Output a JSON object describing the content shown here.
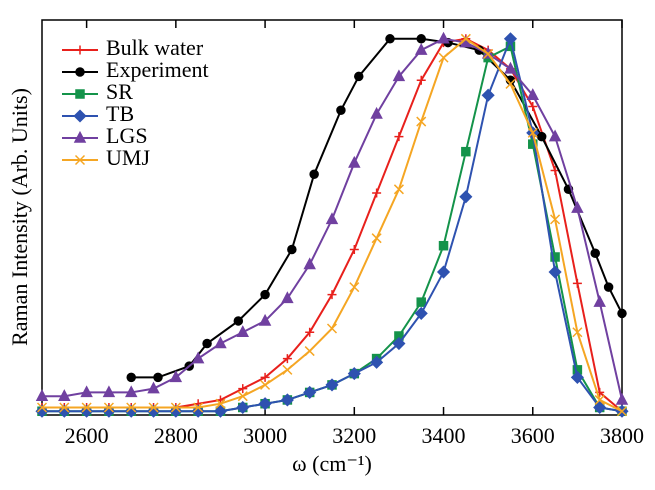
{
  "chart_data": {
    "type": "line",
    "xlabel": "ω (cm⁻¹)",
    "ylabel": "Raman Intensity (Arb. Units)",
    "xlim": [
      2500,
      3800
    ],
    "ylim": [
      0,
      1.05
    ],
    "xticks": [
      2600,
      2800,
      3000,
      3200,
      3400,
      3600,
      3800
    ],
    "legend": "upper left",
    "series": [
      {
        "name": "Bulk water",
        "color": "#e8201c",
        "marker": "plus",
        "x": [
          2500,
          2550,
          2600,
          2650,
          2700,
          2750,
          2800,
          2850,
          2900,
          2950,
          3000,
          3050,
          3100,
          3150,
          3200,
          3250,
          3300,
          3350,
          3400,
          3450,
          3500,
          3550,
          3600,
          3650,
          3700,
          3750,
          3800
        ],
        "values": [
          0.02,
          0.02,
          0.02,
          0.02,
          0.02,
          0.02,
          0.02,
          0.03,
          0.04,
          0.07,
          0.1,
          0.15,
          0.22,
          0.32,
          0.44,
          0.59,
          0.74,
          0.89,
          0.99,
          1.0,
          0.97,
          0.92,
          0.82,
          0.65,
          0.35,
          0.06,
          0.01
        ]
      },
      {
        "name": "Experiment",
        "color": "#000000",
        "marker": "circle",
        "x": [
          2700,
          2760,
          2830,
          2870,
          2940,
          3000,
          3060,
          3110,
          3170,
          3210,
          3280,
          3350,
          3410,
          3480,
          3550,
          3620,
          3680,
          3740,
          3770,
          3800
        ],
        "values": [
          0.1,
          0.1,
          0.13,
          0.19,
          0.25,
          0.32,
          0.44,
          0.64,
          0.81,
          0.9,
          1.0,
          1.0,
          0.99,
          0.97,
          0.89,
          0.74,
          0.6,
          0.43,
          0.34,
          0.27
        ]
      },
      {
        "name": "SR",
        "color": "#14934a",
        "marker": "square",
        "x": [
          2500,
          2550,
          2600,
          2650,
          2700,
          2750,
          2800,
          2850,
          2900,
          2950,
          3000,
          3050,
          3100,
          3150,
          3200,
          3250,
          3300,
          3350,
          3400,
          3450,
          3500,
          3550,
          3600,
          3650,
          3700,
          3750,
          3800
        ],
        "values": [
          0.01,
          0.01,
          0.01,
          0.01,
          0.01,
          0.01,
          0.01,
          0.01,
          0.01,
          0.02,
          0.03,
          0.04,
          0.06,
          0.08,
          0.11,
          0.15,
          0.21,
          0.3,
          0.45,
          0.7,
          0.95,
          0.98,
          0.72,
          0.42,
          0.12,
          0.02,
          0.01
        ]
      },
      {
        "name": "TB",
        "color": "#2e52b0",
        "marker": "diamond",
        "x": [
          2500,
          2550,
          2600,
          2650,
          2700,
          2750,
          2800,
          2850,
          2900,
          2950,
          3000,
          3050,
          3100,
          3150,
          3200,
          3250,
          3300,
          3350,
          3400,
          3450,
          3500,
          3550,
          3600,
          3650,
          3700,
          3750,
          3800
        ],
        "values": [
          0.01,
          0.01,
          0.01,
          0.01,
          0.01,
          0.01,
          0.01,
          0.01,
          0.01,
          0.02,
          0.03,
          0.04,
          0.06,
          0.08,
          0.11,
          0.14,
          0.19,
          0.27,
          0.38,
          0.58,
          0.85,
          1.0,
          0.75,
          0.38,
          0.1,
          0.02,
          0.01
        ]
      },
      {
        "name": "LGS",
        "color": "#7040a0",
        "marker": "triangle",
        "x": [
          2500,
          2550,
          2600,
          2650,
          2700,
          2750,
          2800,
          2850,
          2900,
          2950,
          3000,
          3050,
          3100,
          3150,
          3200,
          3250,
          3300,
          3350,
          3400,
          3450,
          3500,
          3550,
          3600,
          3650,
          3700,
          3750,
          3800
        ],
        "values": [
          0.05,
          0.05,
          0.06,
          0.06,
          0.06,
          0.07,
          0.1,
          0.15,
          0.19,
          0.22,
          0.25,
          0.31,
          0.4,
          0.52,
          0.67,
          0.8,
          0.9,
          0.97,
          1.0,
          0.99,
          0.96,
          0.92,
          0.85,
          0.74,
          0.55,
          0.3,
          0.04
        ]
      },
      {
        "name": "UMJ",
        "color": "#f5a623",
        "marker": "x",
        "x": [
          2500,
          2550,
          2600,
          2650,
          2700,
          2750,
          2800,
          2850,
          2900,
          2950,
          3000,
          3050,
          3100,
          3150,
          3200,
          3250,
          3300,
          3350,
          3400,
          3450,
          3500,
          3550,
          3600,
          3650,
          3700,
          3750,
          3800
        ],
        "values": [
          0.02,
          0.02,
          0.02,
          0.02,
          0.02,
          0.02,
          0.02,
          0.02,
          0.03,
          0.05,
          0.08,
          0.12,
          0.17,
          0.23,
          0.34,
          0.47,
          0.6,
          0.78,
          0.95,
          1.0,
          0.96,
          0.88,
          0.75,
          0.52,
          0.22,
          0.04,
          0.01
        ]
      }
    ]
  }
}
